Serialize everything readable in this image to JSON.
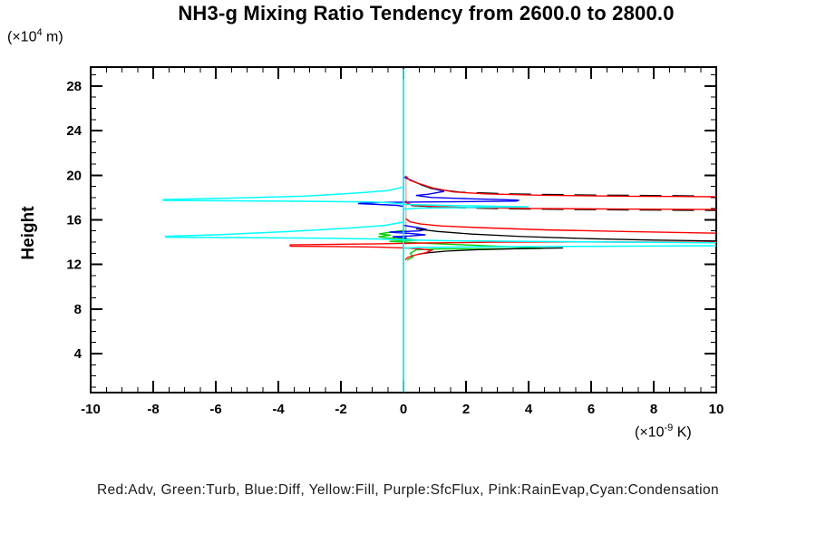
{
  "title": "NH3-g Mixing Ratio Tendency from 2600.0 to 2800.0",
  "y_axis": {
    "name": "Height",
    "unit": {
      "prefix": "(×10",
      "exp": "4",
      "suffix": " m)"
    }
  },
  "x_axis": {
    "unit": {
      "prefix": "(×10",
      "exp": "-9",
      "suffix": " K)"
    }
  },
  "legend_text": "Red:Adv, Green:Turb, Blue:Diff, Yellow:Fill, Purple:SfcFlux, Pink:RainEvap,Cyan:Condensation",
  "legend_entries": [
    {
      "color_name": "Red",
      "label": "Adv",
      "hex": "#ff0000"
    },
    {
      "color_name": "Green",
      "label": "Turb",
      "hex": "#00d000"
    },
    {
      "color_name": "Blue",
      "label": "Diff",
      "hex": "#0000ff"
    },
    {
      "color_name": "Yellow",
      "label": "Fill",
      "hex": "#ffff00"
    },
    {
      "color_name": "Purple",
      "label": "SfcFlux",
      "hex": "#9900cc"
    },
    {
      "color_name": "Pink",
      "label": "RainEvap",
      "hex": "#ff9f9f"
    },
    {
      "color_name": "Cyan",
      "label": "Condensation",
      "hex": "#00ffff"
    }
  ],
  "chart_data": {
    "type": "line",
    "title": "NH3-g Mixing Ratio Tendency from 2600.0 to 2800.0",
    "xlabel": "(×10^-9 K)",
    "ylabel": "Height (×10^4 m)",
    "xlim": [
      -10,
      10
    ],
    "ylim": [
      0.5,
      29.7
    ],
    "grid": false,
    "x_major_ticks": [
      -10,
      -8,
      -6,
      -4,
      -2,
      0,
      2,
      4,
      6,
      8,
      10
    ],
    "x_tick_labels": [
      "-10",
      "-8",
      "-6",
      "-4",
      "-2",
      "0",
      "2",
      "4",
      "6",
      "8",
      "10"
    ],
    "x_minor_step": 0.5,
    "y_major_ticks": [
      4,
      8,
      12,
      16,
      20,
      24,
      28
    ],
    "y_tick_labels": [
      "4",
      "8",
      "12",
      "16",
      "20",
      "24",
      "28"
    ],
    "y_minor_step": 1,
    "series": [
      {
        "id": "yellow-fill",
        "color": "#ffff00",
        "width": 1.4,
        "lines": [
          [
            [
              0,
              29.55
            ],
            [
              0,
              0.55
            ]
          ]
        ]
      },
      {
        "id": "purple-sfcflux",
        "color": "#9900cc",
        "width": 1.4,
        "lines": [
          [
            [
              0,
              29.55
            ],
            [
              0,
              0.55
            ]
          ]
        ]
      },
      {
        "id": "pink-rainevap",
        "color": "#ff9f9f",
        "width": 1.4,
        "lines": [
          [
            [
              0.08,
              19.82
            ],
            [
              0.08,
              13.75
            ]
          ]
        ]
      },
      {
        "id": "green-turb",
        "color": "#00d000",
        "width": 1.4,
        "lines": [
          [
            [
              0.05,
              15.05
            ],
            [
              -0.4,
              14.9
            ],
            [
              -0.78,
              14.74
            ],
            [
              -0.4,
              14.62
            ],
            [
              -0.8,
              14.5
            ],
            [
              -0.55,
              14.38
            ],
            [
              0.1,
              14.28
            ],
            [
              0.45,
              14.17
            ],
            [
              -0.45,
              14.07
            ],
            [
              0.25,
              13.97
            ],
            [
              1.1,
              13.85
            ],
            [
              2.4,
              13.7
            ],
            [
              3.5,
              13.57
            ],
            [
              4.45,
              13.44
            ],
            [
              2.6,
              13.4
            ],
            [
              1.1,
              13.38
            ],
            [
              0.4,
              13.3
            ],
            [
              0.22,
              13.0
            ],
            [
              0.3,
              12.68
            ],
            [
              0.12,
              12.38
            ]
          ]
        ]
      },
      {
        "id": "blue-diff",
        "color": "#0000ff",
        "width": 1.4,
        "lines": [
          [
            [
              0,
              19.85
            ],
            [
              0.25,
              19.55
            ],
            [
              0.6,
              19.1
            ],
            [
              1.0,
              18.75
            ],
            [
              1.3,
              18.55
            ],
            [
              0.8,
              18.3
            ],
            [
              0.4,
              18.18
            ],
            [
              0.9,
              18.0
            ],
            [
              2.2,
              17.88
            ],
            [
              3.3,
              17.8
            ],
            [
              3.7,
              17.76
            ],
            [
              3.6,
              17.68
            ],
            [
              2.2,
              17.64
            ],
            [
              0.5,
              17.6
            ],
            [
              -0.8,
              17.56
            ],
            [
              -1.3,
              17.5
            ],
            [
              -1.45,
              17.45
            ],
            [
              -0.8,
              17.38
            ],
            [
              -0.2,
              17.3
            ],
            [
              0,
              17.2
            ]
          ],
          [
            [
              0,
              15.5
            ],
            [
              0.45,
              15.3
            ],
            [
              0.74,
              15.15
            ],
            [
              0.5,
              15.0
            ],
            [
              -0.45,
              14.9
            ],
            [
              0.2,
              14.78
            ],
            [
              0.7,
              14.65
            ],
            [
              0.2,
              14.55
            ],
            [
              -0.35,
              14.48
            ],
            [
              0.1,
              14.38
            ],
            [
              0,
              14.28
            ]
          ]
        ]
      },
      {
        "id": "black-line",
        "color": "#000000",
        "width": 1.3,
        "dash": "24 12",
        "lines": [
          [
            [
              0.3,
              19.45
            ],
            [
              0.9,
              18.8
            ],
            [
              1.8,
              18.48
            ],
            [
              3.5,
              18.32
            ],
            [
              6,
              18.22
            ],
            [
              9.3,
              18.15
            ]
          ],
          [
            [
              0.25,
              17.28
            ],
            [
              1.4,
              17.1
            ],
            [
              3.5,
              16.98
            ],
            [
              6.5,
              16.9
            ],
            [
              10,
              16.84
            ]
          ]
        ]
      },
      {
        "id": "black-line-solid",
        "color": "#000000",
        "width": 1.3,
        "lines": [
          [
            [
              0.4,
              15.18
            ],
            [
              1.1,
              14.95
            ],
            [
              2.2,
              14.72
            ],
            [
              3.8,
              14.5
            ],
            [
              6,
              14.3
            ],
            [
              8,
              14.18
            ],
            [
              10,
              14.1
            ]
          ],
          [
            [
              0.45,
              12.9
            ],
            [
              0.8,
              13.05
            ],
            [
              1.4,
              13.2
            ],
            [
              2.4,
              13.32
            ],
            [
              3.8,
              13.42
            ],
            [
              5.1,
              13.47
            ]
          ]
        ]
      },
      {
        "id": "red-adv",
        "color": "#ff0000",
        "width": 1.4,
        "lines": [
          [
            [
              0.06,
              19.95
            ],
            [
              0.2,
              19.55
            ],
            [
              0.5,
              19.25
            ],
            [
              0.95,
              18.85
            ],
            [
              1.6,
              18.5
            ],
            [
              2.6,
              18.33
            ],
            [
              4.5,
              18.2
            ],
            [
              7,
              18.12
            ],
            [
              10,
              18.07
            ]
          ],
          [
            [
              10,
              16.92
            ],
            [
              7,
              16.96
            ],
            [
              4,
              17.02
            ],
            [
              2,
              17.1
            ],
            [
              0.9,
              17.2
            ],
            [
              0.3,
              17.32
            ],
            [
              0.12,
              17.5
            ],
            [
              0.08,
              17.7
            ]
          ],
          [
            [
              0.08,
              16.1
            ],
            [
              0.2,
              15.82
            ],
            [
              0.55,
              15.62
            ],
            [
              1.2,
              15.45
            ],
            [
              2.4,
              15.3
            ],
            [
              4.5,
              15.1
            ],
            [
              7,
              14.95
            ],
            [
              10,
              14.8
            ]
          ],
          [
            [
              10,
              13.99
            ],
            [
              7,
              14.0
            ],
            [
              5.4,
              14.02
            ],
            [
              3,
              13.99
            ],
            [
              0.8,
              13.93
            ],
            [
              -0.8,
              13.85
            ],
            [
              -2.4,
              13.79
            ],
            [
              -3.62,
              13.75
            ],
            [
              -3.62,
              13.63
            ],
            [
              -2.2,
              13.6
            ],
            [
              -0.8,
              13.55
            ],
            [
              0,
              13.48
            ],
            [
              0.5,
              13.4
            ],
            [
              0.9,
              13.27
            ],
            [
              0.72,
              13.05
            ],
            [
              0.35,
              12.82
            ],
            [
              0.12,
              12.6
            ],
            [
              0.06,
              12.4
            ]
          ]
        ]
      },
      {
        "id": "cyan-condensation",
        "color": "#00ffff",
        "width": 1.5,
        "lines": [
          [
            [
              0,
              29.55
            ],
            [
              0,
              0.55
            ]
          ],
          [
            [
              0,
              18.95
            ],
            [
              -0.5,
              18.62
            ],
            [
              -1.5,
              18.4
            ],
            [
              -3.2,
              18.12
            ],
            [
              -5.5,
              17.95
            ],
            [
              -7.68,
              17.82
            ],
            [
              -7.68,
              17.74
            ],
            [
              -5.5,
              17.7
            ],
            [
              -3,
              17.66
            ],
            [
              -1,
              17.6
            ],
            [
              -0.3,
              17.5
            ],
            [
              0.1,
              17.38
            ],
            [
              1.2,
              17.3
            ],
            [
              2.6,
              17.24
            ],
            [
              4,
              17.17
            ],
            [
              2,
              17.1
            ],
            [
              0.5,
              17.05
            ],
            [
              0,
              16.95
            ]
          ],
          [
            [
              0,
              15.8
            ],
            [
              -0.6,
              15.5
            ],
            [
              -1.8,
              15.25
            ],
            [
              -3.6,
              14.95
            ],
            [
              -5.8,
              14.68
            ],
            [
              -7.6,
              14.52
            ],
            [
              -7.6,
              14.44
            ],
            [
              -5,
              14.4
            ],
            [
              -2.5,
              14.34
            ],
            [
              -0.8,
              14.28
            ],
            [
              0,
              14.2
            ],
            [
              1.5,
              14.12
            ],
            [
              4,
              14.06
            ],
            [
              7,
              14.0
            ],
            [
              10,
              13.94
            ]
          ],
          [
            [
              10,
              13.68
            ],
            [
              6,
              13.62
            ],
            [
              2.5,
              13.57
            ],
            [
              0.5,
              13.52
            ],
            [
              0,
              13.45
            ]
          ]
        ]
      }
    ]
  }
}
